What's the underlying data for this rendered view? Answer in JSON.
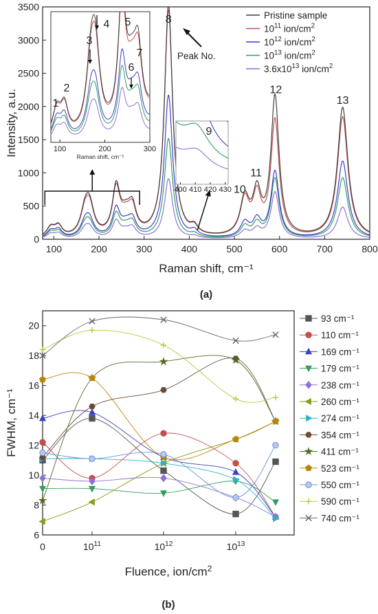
{
  "chart_data": [
    {
      "type": "line",
      "panel_label": "(a)",
      "xlabel": "Raman shift, cm⁻¹",
      "ylabel": "Intensity, a.u.",
      "xlim": [
        75,
        800
      ],
      "ylim": [
        0,
        3500
      ],
      "xticks": [
        "100",
        "200",
        "300",
        "400",
        "500",
        "600",
        "700",
        "800"
      ],
      "yticks": [
        "0",
        "500",
        "1000",
        "1500",
        "2000",
        "2500",
        "3000",
        "3500"
      ],
      "legend_position": "top-right",
      "series": [
        {
          "name": "Pristine sample",
          "color": "#404040"
        },
        {
          "name_base": "10",
          "name_exp": "11",
          "name_unit": " ion/cm",
          "name_unit_exp": "2",
          "color": "#c0504d"
        },
        {
          "name_base": "10",
          "name_exp": "12",
          "name_unit": " ion/cm",
          "name_unit_exp": "2",
          "color": "#3b3fc4"
        },
        {
          "name_base": "10",
          "name_exp": "13",
          "name_unit": " ion/cm",
          "name_unit_exp": "2",
          "color": "#2e9e5e"
        },
        {
          "name_base": "3.6x10",
          "name_exp": "13",
          "name_unit": " ion/cm",
          "name_unit_exp": "2",
          "color": "#8f6fd8"
        }
      ],
      "peaks": [
        {
          "pos": 93,
          "width": 11,
          "amps": [
            150,
            145,
            110,
            95,
            70
          ]
        },
        {
          "pos": 110,
          "width": 10,
          "amps": [
            160,
            155,
            120,
            100,
            75
          ]
        },
        {
          "pos": 169,
          "width": 12,
          "amps": [
            340,
            320,
            200,
            170,
            120
          ]
        },
        {
          "pos": 179,
          "width": 12,
          "amps": [
            420,
            400,
            230,
            195,
            140
          ]
        },
        {
          "pos": 238,
          "width": 10,
          "amps": [
            690,
            660,
            400,
            330,
            240
          ]
        },
        {
          "pos": 260,
          "width": 16,
          "amps": [
            300,
            280,
            180,
            150,
            100
          ]
        },
        {
          "pos": 274,
          "width": 10,
          "amps": [
            330,
            310,
            200,
            170,
            120
          ]
        },
        {
          "pos": 354,
          "width": 11,
          "amps": [
            3500,
            3420,
            2150,
            1500,
            900
          ]
        },
        {
          "pos": 411,
          "width": 10,
          "amps": [
            110,
            105,
            85,
            50,
            30
          ]
        },
        {
          "pos": 523,
          "width": 12,
          "amps": [
            560,
            540,
            220,
            170,
            110
          ]
        },
        {
          "pos": 550,
          "width": 11,
          "amps": [
            620,
            580,
            250,
            200,
            130
          ]
        },
        {
          "pos": 590,
          "width": 11,
          "amps": [
            2100,
            1750,
            1000,
            900,
            700
          ]
        },
        {
          "pos": 740,
          "width": 14,
          "amps": [
            1970,
            1830,
            1170,
            920,
            480
          ]
        }
      ],
      "peak_labels": [
        {
          "text": "8",
          "x": 354,
          "y": 3260
        },
        {
          "text": "10",
          "x": 512,
          "y": 700
        },
        {
          "text": "11",
          "x": 548,
          "y": 950
        },
        {
          "text": "12",
          "x": 592,
          "y": 2200
        },
        {
          "text": "13",
          "x": 740,
          "y": 2040
        }
      ],
      "annotation": "Peak No.",
      "inset_main": {
        "xlim": [
          80,
          300
        ],
        "xticks": [
          "100",
          "200",
          "300"
        ],
        "xlabel": "Raman shift, cm⁻¹",
        "labels": [
          "1",
          "2",
          "3",
          "4",
          "5",
          "6",
          "7"
        ]
      },
      "inset_small": {
        "xlim": [
          397,
          432
        ],
        "xticks": [
          "400",
          "410",
          "420",
          "430"
        ],
        "label": "9"
      }
    },
    {
      "type": "line",
      "panel_label": "(b)",
      "xlabel": "Fluence, ion/cm²",
      "ylabel": "FWHM, cm⁻¹",
      "ylim": [
        6,
        21
      ],
      "yticks": [
        "6",
        "8",
        "10",
        "12",
        "14",
        "16",
        "18",
        "20"
      ],
      "xticks": [
        {
          "base": "0",
          "exp": ""
        },
        {
          "base": "10",
          "exp": "11"
        },
        {
          "base": "10",
          "exp": "12"
        },
        {
          "base": "10",
          "exp": "13"
        }
      ],
      "legend_position": "right",
      "x": [
        "0",
        "1e11",
        "1e12",
        "1e13",
        "3.6e13"
      ],
      "series": [
        {
          "name": "93 cm⁻¹",
          "marker": "square",
          "color": "#555555",
          "values": [
            11.0,
            13.8,
            10.3,
            7.4,
            10.9
          ]
        },
        {
          "name": "110 cm⁻¹",
          "marker": "circle",
          "color": "#c0504d",
          "values": [
            12.2,
            9.8,
            12.8,
            10.8,
            7.2
          ]
        },
        {
          "name": "169 cm⁻¹",
          "marker": "triangle-up",
          "color": "#3b3fc4",
          "values": [
            13.8,
            14.2,
            11.2,
            10.2,
            7.2
          ]
        },
        {
          "name": "179 cm⁻¹",
          "marker": "triangle-down",
          "color": "#2e9e5e",
          "values": [
            9.1,
            9.1,
            8.8,
            9.6,
            8.2
          ]
        },
        {
          "name": "238 cm⁻¹",
          "marker": "diamond",
          "color": "#8f6fd8",
          "values": [
            9.8,
            9.6,
            9.8,
            8.5,
            7.2
          ]
        },
        {
          "name": "260 cm⁻¹",
          "marker": "triangle-left",
          "color": "#8a9a1a",
          "values": [
            6.9,
            8.2,
            10.8,
            12.4,
            13.6
          ]
        },
        {
          "name": "274 cm⁻¹",
          "marker": "triangle-right",
          "color": "#2ab4c8",
          "values": [
            11.1,
            11.1,
            10.8,
            9.7,
            7.1
          ]
        },
        {
          "name": "354 cm⁻¹",
          "marker": "hexagon",
          "color": "#6b4a3a",
          "values": [
            11.2,
            14.6,
            15.7,
            17.8,
            13.6
          ]
        },
        {
          "name": "411 cm⁻¹",
          "marker": "star",
          "color": "#4f6b1f",
          "values": [
            8.3,
            16.5,
            17.6,
            17.7,
            13.6
          ]
        },
        {
          "name": "523 cm⁻¹",
          "marker": "pentagon",
          "color": "#b8860b",
          "values": [
            16.4,
            16.5,
            11.2,
            12.4,
            13.6
          ]
        },
        {
          "name": "550 cm⁻¹",
          "marker": "sphere",
          "color": "#6b8fe0",
          "values": [
            11.5,
            11.1,
            11.4,
            8.5,
            12.0
          ]
        },
        {
          "name": "590 cm⁻¹",
          "marker": "plus",
          "color": "#b5c93a",
          "values": [
            18.4,
            19.7,
            18.7,
            15.1,
            15.2
          ]
        },
        {
          "name": "740 cm⁻¹",
          "marker": "cross",
          "color": "#666666",
          "values": [
            18.0,
            20.3,
            20.4,
            19.0,
            19.4
          ]
        }
      ]
    }
  ]
}
